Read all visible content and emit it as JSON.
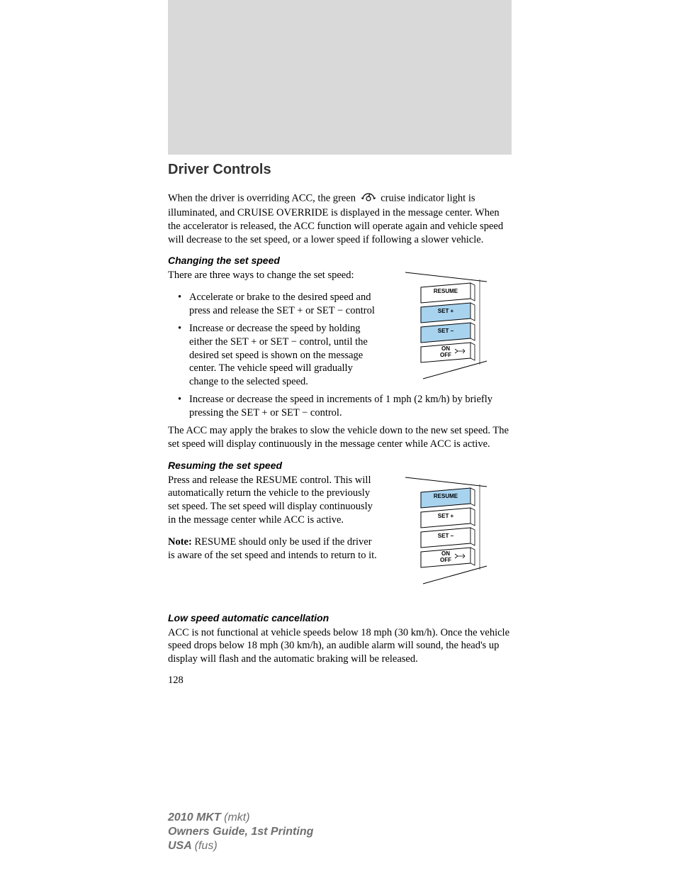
{
  "heading": "Driver Controls",
  "intro_before_icon": "When the driver is overriding ACC, the green",
  "intro_after_icon": "cruise indicator light is illuminated, and CRUISE OVERRIDE is displayed in the message center. When the accelerator is released, the ACC function will operate again and vehicle speed will decrease to the set speed, or a lower speed if following a slower vehicle.",
  "section1": {
    "title": "Changing the set speed",
    "lead": "There are three ways to change the set speed:",
    "bullets": [
      "Accelerate or brake to the desired speed and press and release the SET + or SET − control",
      "Increase or decrease the speed by holding either the SET + or SET − control, until the desired set speed is shown on the message center. The vehicle speed will gradually change to the selected speed.",
      "Increase or decrease the speed in increments of 1 mph (2 km/h) by briefly pressing the SET + or SET − control."
    ],
    "tail": "The ACC may apply the brakes to slow the vehicle down to the new set speed. The set speed will display continuously in the message center while ACC is active.",
    "diagram": {
      "buttons": [
        {
          "label": "RESUME",
          "fill": "#ffffff"
        },
        {
          "label": "SET  +",
          "fill": "#a8d3ef"
        },
        {
          "label": "SET  −",
          "fill": "#a8d3ef"
        },
        {
          "label": "ON",
          "sub": "OFF",
          "fill": "#ffffff",
          "arrow": true
        }
      ],
      "stroke": "#000000"
    }
  },
  "section2": {
    "title": "Resuming the set speed",
    "para": "Press and release the RESUME control. This will automatically return the vehicle to the previously set speed. The set speed will display continuously in the message center while ACC is active.",
    "note_label": "Note:",
    "note": " RESUME should only be used if the driver is aware of the set speed and intends to return to it.",
    "diagram": {
      "buttons": [
        {
          "label": "RESUME",
          "fill": "#a8d3ef"
        },
        {
          "label": "SET  +",
          "fill": "#ffffff"
        },
        {
          "label": "SET  −",
          "fill": "#ffffff"
        },
        {
          "label": "ON",
          "sub": "OFF",
          "fill": "#ffffff",
          "arrow": true
        }
      ],
      "stroke": "#000000"
    }
  },
  "section3": {
    "title": "Low speed automatic cancellation",
    "para": "ACC is not functional at vehicle speeds below 18 mph (30 km/h). Once the vehicle speed drops below 18 mph (30 km/h), an audible alarm will sound, the head's up display will flash and the automatic braking will be released."
  },
  "page_number": "128",
  "footer": {
    "l1_bold": "2010 MKT ",
    "l1_rest": "(mkt)",
    "l2": "Owners Guide, 1st Printing",
    "l3_bold": "USA ",
    "l3_rest": "(fus)"
  },
  "colors": {
    "gray_box": "#d9d9d9",
    "footer_text": "#6f6f6f",
    "highlight": "#a8d3ef"
  }
}
